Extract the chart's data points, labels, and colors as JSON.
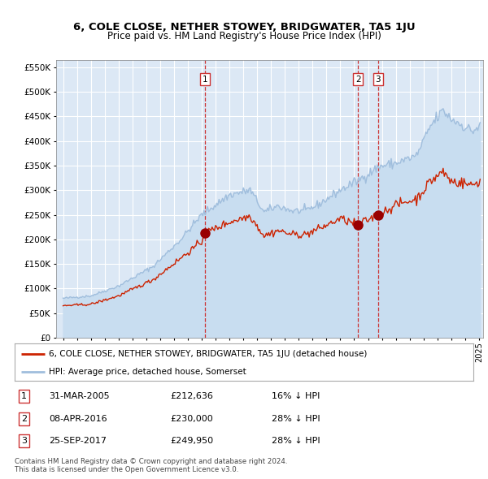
{
  "title": "6, COLE CLOSE, NETHER STOWEY, BRIDGWATER, TA5 1JU",
  "subtitle": "Price paid vs. HM Land Registry's House Price Index (HPI)",
  "legend_line1": "6, COLE CLOSE, NETHER STOWEY, BRIDGWATER, TA5 1JU (detached house)",
  "legend_line2": "HPI: Average price, detached house, Somerset",
  "sale1_date": "31-MAR-2005",
  "sale1_price": 212636,
  "sale1_year": 2005.24,
  "sale2_date": "08-APR-2016",
  "sale2_price": 230000,
  "sale2_year": 2016.27,
  "sale3_date": "25-SEP-2017",
  "sale3_price": 249950,
  "sale3_year": 2017.73,
  "table_row1": [
    "1",
    "31-MAR-2005",
    "£212,636",
    "16% ↓ HPI"
  ],
  "table_row2": [
    "2",
    "08-APR-2016",
    "£230,000",
    "28% ↓ HPI"
  ],
  "table_row3": [
    "3",
    "25-SEP-2017",
    "£249,950",
    "28% ↓ HPI"
  ],
  "footnote1": "Contains HM Land Registry data © Crown copyright and database right 2024.",
  "footnote2": "This data is licensed under the Open Government Licence v3.0.",
  "yticks": [
    0,
    50000,
    100000,
    150000,
    200000,
    250000,
    300000,
    350000,
    400000,
    450000,
    500000,
    550000
  ],
  "bg_color": "#dce8f5",
  "hpi_color": "#a0bedd",
  "hpi_fill_color": "#c8ddf0",
  "red_color": "#cc2200",
  "vline_color": "#cc3333",
  "marker_color": "#990000",
  "hpi_milestones_x": [
    1995.0,
    1997.0,
    1999.0,
    2001.5,
    2003.5,
    2005.0,
    2007.0,
    2008.5,
    2009.5,
    2010.5,
    2011.5,
    2012.5,
    2013.5,
    2015.0,
    2016.3,
    2017.8,
    2019.0,
    2020.5,
    2021.5,
    2022.4,
    2023.0,
    2023.8,
    2024.5,
    2025.0
  ],
  "hpi_milestones_y": [
    80000,
    85000,
    105000,
    145000,
    200000,
    250000,
    290000,
    300000,
    255000,
    268000,
    258000,
    258000,
    272000,
    300000,
    320000,
    348000,
    355000,
    370000,
    430000,
    462000,
    445000,
    432000,
    420000,
    428000
  ],
  "red_milestones_x": [
    1995.0,
    1997.0,
    1999.0,
    2001.5,
    2003.5,
    2005.0,
    2005.24,
    2007.0,
    2008.5,
    2009.5,
    2010.5,
    2011.5,
    2012.5,
    2013.5,
    2015.0,
    2016.27,
    2017.73,
    2019.0,
    2020.5,
    2021.5,
    2022.4,
    2023.0,
    2023.8,
    2024.5,
    2025.0
  ],
  "red_milestones_y": [
    65000,
    68000,
    85000,
    118000,
    162000,
    195000,
    212636,
    235000,
    248000,
    207000,
    218000,
    210000,
    210000,
    222000,
    242000,
    230000,
    249950,
    270000,
    282000,
    318000,
    338000,
    318000,
    315000,
    310000,
    318000
  ]
}
